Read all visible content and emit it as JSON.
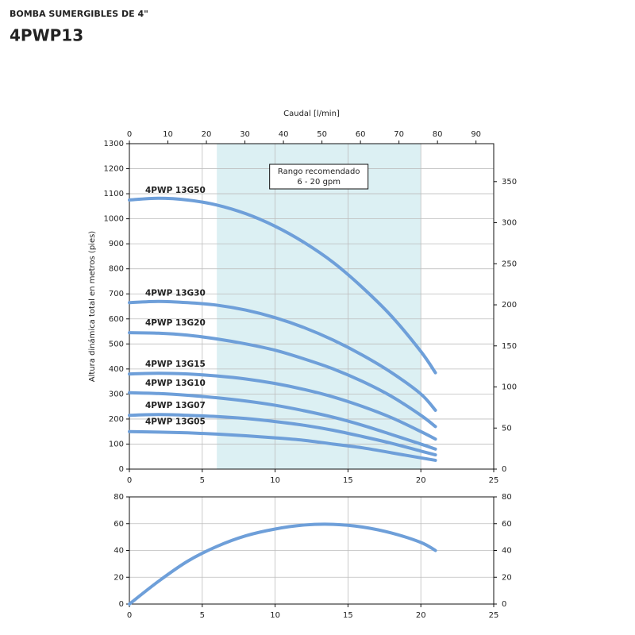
{
  "header": {
    "subtitle": "BOMBA SUMERGIBLES DE 4\"",
    "title": "4PWP13"
  },
  "chart_data": [
    {
      "type": "line",
      "x2label": "Caudal [l/min]",
      "ylabel": "Altura dinámica total en metros (pies)",
      "x": [
        0,
        2,
        4,
        6,
        8,
        10,
        12,
        14,
        16,
        18,
        20,
        21
      ],
      "xlim": [
        0,
        25
      ],
      "xticks": [
        0,
        5,
        10,
        15,
        20,
        25
      ],
      "x2lim": [
        0,
        94.6
      ],
      "x2ticks": [
        0,
        10,
        20,
        30,
        40,
        50,
        60,
        70,
        80,
        90
      ],
      "ylim": [
        0,
        1300
      ],
      "yticks": [
        0,
        100,
        200,
        300,
        400,
        500,
        600,
        700,
        800,
        900,
        1000,
        1100,
        1200,
        1300
      ],
      "y2lim": [
        0,
        396.2
      ],
      "y2ticks": [
        0,
        50,
        100,
        150,
        200,
        250,
        300,
        350
      ],
      "grid": true,
      "highlight": {
        "x": [
          6,
          20
        ],
        "color": "#dcf0f3",
        "label": [
          "Rango recomendado",
          "6 - 20 gpm"
        ]
      },
      "series": [
        {
          "name": "4PWP 13G50",
          "color": "#6e9fd9",
          "values": [
            1075,
            1082,
            1075,
            1055,
            1020,
            970,
            905,
            825,
            725,
            610,
            470,
            385
          ]
        },
        {
          "name": "4PWP 13G30",
          "color": "#6e9fd9",
          "values": [
            665,
            670,
            665,
            655,
            635,
            605,
            565,
            515,
            455,
            385,
            300,
            235
          ]
        },
        {
          "name": "4PWP 13G20",
          "color": "#6e9fd9",
          "values": [
            545,
            543,
            535,
            520,
            500,
            475,
            440,
            400,
            350,
            290,
            215,
            170
          ]
        },
        {
          "name": "4PWP 13G15",
          "color": "#6e9fd9",
          "values": [
            380,
            383,
            380,
            372,
            360,
            342,
            318,
            288,
            250,
            205,
            150,
            120
          ]
        },
        {
          "name": "4PWP 13G10",
          "color": "#6e9fd9",
          "values": [
            305,
            302,
            295,
            285,
            272,
            255,
            233,
            207,
            175,
            138,
            100,
            80
          ]
        },
        {
          "name": "4PWP 13G07",
          "color": "#6e9fd9",
          "values": [
            215,
            218,
            215,
            210,
            202,
            190,
            175,
            155,
            130,
            103,
            72,
            57
          ]
        },
        {
          "name": "4PWP 13G05",
          "color": "#6e9fd9",
          "values": [
            150,
            148,
            145,
            140,
            133,
            125,
            115,
            100,
            85,
            65,
            45,
            35
          ]
        }
      ]
    },
    {
      "type": "line",
      "x": [
        0,
        2,
        4,
        6,
        8,
        10,
        12,
        14,
        16,
        18,
        20,
        21
      ],
      "xlim": [
        0,
        25
      ],
      "xticks": [
        0,
        5,
        10,
        15,
        20,
        25
      ],
      "ylim": [
        0,
        80
      ],
      "yticks": [
        0,
        20,
        40,
        60,
        80
      ],
      "y2lim": [
        0,
        80
      ],
      "y2ticks": [
        0,
        20,
        40,
        60,
        80
      ],
      "grid": true,
      "series": [
        {
          "color": "#6e9fd9",
          "values": [
            0,
            17,
            32,
            43,
            51,
            56,
            59,
            59.5,
            57.5,
            53,
            46,
            40
          ]
        }
      ]
    }
  ]
}
